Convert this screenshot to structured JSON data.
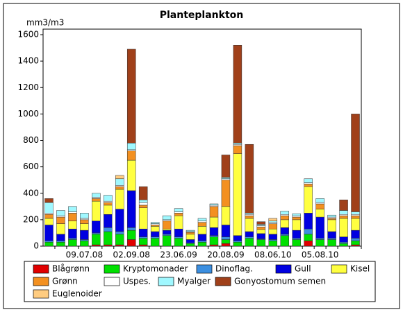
{
  "chart_data": {
    "type": "stacked_bar",
    "title": "Planteplankton",
    "y_label": "mm3/m3",
    "categories": [
      null,
      null,
      null,
      "09.07.08",
      null,
      null,
      null,
      "02.09.08",
      null,
      null,
      null,
      "23.06.09",
      null,
      null,
      null,
      "20.08.09",
      null,
      null,
      null,
      "08.06.10",
      null,
      null,
      null,
      "05.08.10",
      null,
      null,
      null
    ],
    "ylim": [
      0,
      1600
    ],
    "yticks": [
      0,
      200,
      400,
      600,
      800,
      1000,
      1200,
      1400,
      1600
    ],
    "series": [
      {
        "name": "Blågrønn",
        "color": "#e00000",
        "values": [
          0,
          0,
          0,
          0,
          10,
          10,
          10,
          50,
          10,
          0,
          0,
          0,
          0,
          0,
          10,
          20,
          0,
          0,
          0,
          0,
          0,
          0,
          40,
          0,
          0,
          0,
          10
        ]
      },
      {
        "name": "Kryptomonader",
        "color": "#00e000",
        "values": [
          30,
          30,
          50,
          40,
          80,
          100,
          80,
          70,
          50,
          60,
          80,
          60,
          20,
          30,
          60,
          30,
          30,
          60,
          50,
          40,
          80,
          50,
          50,
          50,
          50,
          20,
          30
        ]
      },
      {
        "name": "Dinoflag.",
        "color": "#3c8fe0",
        "values": [
          10,
          10,
          10,
          10,
          10,
          30,
          20,
          20,
          10,
          10,
          10,
          10,
          5,
          10,
          10,
          20,
          10,
          10,
          5,
          10,
          10,
          10,
          40,
          10,
          10,
          10,
          20
        ]
      },
      {
        "name": "Gull",
        "color": "#0000e0",
        "values": [
          120,
          50,
          70,
          70,
          90,
          100,
          170,
          280,
          60,
          40,
          30,
          60,
          25,
          50,
          60,
          90,
          40,
          40,
          40,
          40,
          50,
          60,
          120,
          160,
          50,
          40,
          60
        ]
      },
      {
        "name": "Kisel",
        "color": "#ffff40",
        "values": [
          50,
          80,
          60,
          50,
          150,
          70,
          150,
          230,
          160,
          40,
          10,
          100,
          40,
          60,
          80,
          140,
          620,
          100,
          30,
          40,
          60,
          80,
          200,
          60,
          90,
          140,
          90
        ]
      },
      {
        "name": "Grønn",
        "color": "#f39020",
        "values": [
          30,
          50,
          60,
          30,
          20,
          20,
          20,
          70,
          20,
          10,
          60,
          20,
          15,
          30,
          80,
          200,
          60,
          20,
          20,
          40,
          30,
          20,
          20,
          40,
          10,
          20,
          20
        ]
      },
      {
        "name": "Uspes.",
        "color": "#ffffff",
        "values": [
          10,
          10,
          10,
          10,
          10,
          10,
          10,
          10,
          20,
          10,
          10,
          10,
          5,
          10,
          10,
          10,
          10,
          10,
          10,
          10,
          10,
          10,
          10,
          10,
          10,
          10,
          10
        ]
      },
      {
        "name": "Myalger",
        "color": "#a0f8ff",
        "values": [
          80,
          40,
          40,
          40,
          30,
          45,
          50,
          50,
          20,
          10,
          30,
          25,
          10,
          20,
          10,
          10,
          10,
          10,
          10,
          10,
          25,
          15,
          30,
          30,
          15,
          30,
          20
        ]
      },
      {
        "name": "Gonyostomum semen",
        "color": "#a0401a",
        "values": [
          30,
          0,
          0,
          0,
          0,
          0,
          0,
          710,
          100,
          0,
          0,
          0,
          0,
          0,
          0,
          170,
          740,
          520,
          20,
          0,
          0,
          0,
          0,
          0,
          0,
          80,
          740
        ]
      },
      {
        "name": "Euglenoider",
        "color": "#ffcc80",
        "values": [
          0,
          0,
          0,
          0,
          0,
          0,
          25,
          0,
          0,
          0,
          0,
          0,
          0,
          0,
          0,
          0,
          0,
          0,
          0,
          20,
          0,
          0,
          0,
          0,
          0,
          0,
          0
        ]
      }
    ]
  }
}
